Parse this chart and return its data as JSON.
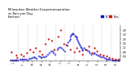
{
  "title": "Milwaukee Weather Evapotranspiration\nvs Rain per Day\n(Inches)",
  "title_fontsize": 2.8,
  "background_color": "#ffffff",
  "legend_et": "ET",
  "legend_rain": "Rain",
  "legend_color_et": "#0000dd",
  "legend_color_rain": "#dd0000",
  "ylim": [
    0,
    0.32
  ],
  "ytick_vals": [
    0.04,
    0.08,
    0.12,
    0.16,
    0.2,
    0.24,
    0.28
  ],
  "ytick_fontsize": 2.2,
  "xtick_fontsize": 2.0,
  "grid_color": "#999999",
  "et_marker_size": 0.9,
  "rain_marker_size": 1.2,
  "et_color": "#0000cc",
  "rain_color": "#cc0000",
  "months": [
    "J",
    "F",
    "M",
    "A",
    "M",
    "J",
    "J",
    "A",
    "S",
    "O",
    "N",
    "D"
  ],
  "et_data": [
    [
      2,
      0.005
    ],
    [
      4,
      0.007
    ],
    [
      6,
      0.008
    ],
    [
      8,
      0.006
    ],
    [
      10,
      0.005
    ],
    [
      12,
      0.004
    ],
    [
      15,
      0.01
    ],
    [
      17,
      0.012
    ],
    [
      19,
      0.01
    ],
    [
      21,
      0.012
    ],
    [
      23,
      0.01
    ],
    [
      25,
      0.008
    ],
    [
      28,
      0.018
    ],
    [
      30,
      0.022
    ],
    [
      32,
      0.03
    ],
    [
      34,
      0.038
    ],
    [
      36,
      0.03
    ],
    [
      38,
      0.022
    ],
    [
      41,
      0.04
    ],
    [
      43,
      0.035
    ],
    [
      45,
      0.03
    ],
    [
      47,
      0.032
    ],
    [
      49,
      0.038
    ],
    [
      51,
      0.042
    ],
    [
      54,
      0.06
    ],
    [
      56,
      0.075
    ],
    [
      58,
      0.09
    ],
    [
      60,
      0.085
    ],
    [
      62,
      0.07
    ],
    [
      64,
      0.055
    ],
    [
      67,
      0.1
    ],
    [
      69,
      0.115
    ],
    [
      71,
      0.125
    ],
    [
      73,
      0.12
    ],
    [
      75,
      0.105
    ],
    [
      77,
      0.09
    ],
    [
      80,
      0.145
    ],
    [
      82,
      0.165
    ],
    [
      84,
      0.185
    ],
    [
      85,
      0.2
    ],
    [
      86,
      0.22
    ],
    [
      87,
      0.235
    ],
    [
      88,
      0.245
    ],
    [
      89,
      0.25
    ],
    [
      90,
      0.245
    ],
    [
      92,
      0.23
    ],
    [
      93,
      0.22
    ],
    [
      94,
      0.21
    ],
    [
      95,
      0.2
    ],
    [
      96,
      0.185
    ],
    [
      97,
      0.17
    ],
    [
      98,
      0.155
    ],
    [
      99,
      0.14
    ],
    [
      100,
      0.125
    ],
    [
      101,
      0.115
    ],
    [
      102,
      0.105
    ],
    [
      103,
      0.095
    ],
    [
      105,
      0.115
    ],
    [
      107,
      0.105
    ],
    [
      109,
      0.095
    ],
    [
      111,
      0.085
    ],
    [
      113,
      0.072
    ],
    [
      115,
      0.06
    ],
    [
      118,
      0.065
    ],
    [
      120,
      0.072
    ],
    [
      122,
      0.06
    ],
    [
      124,
      0.05
    ],
    [
      126,
      0.042
    ],
    [
      128,
      0.035
    ],
    [
      131,
      0.038
    ],
    [
      133,
      0.03
    ],
    [
      135,
      0.022
    ],
    [
      137,
      0.016
    ],
    [
      139,
      0.012
    ],
    [
      141,
      0.01
    ],
    [
      144,
      0.008
    ],
    [
      146,
      0.006
    ],
    [
      148,
      0.005
    ],
    [
      150,
      0.004
    ],
    [
      152,
      0.003
    ],
    [
      154,
      0.002
    ]
  ],
  "rain_data": [
    [
      3,
      0.08
    ],
    [
      9,
      0.05
    ],
    [
      11,
      0.03
    ],
    [
      16,
      0.06
    ],
    [
      20,
      0.04
    ],
    [
      24,
      0.07
    ],
    [
      29,
      0.1
    ],
    [
      33,
      0.08
    ],
    [
      37,
      0.12
    ],
    [
      42,
      0.09
    ],
    [
      46,
      0.06
    ],
    [
      50,
      0.15
    ],
    [
      55,
      0.2
    ],
    [
      59,
      0.18
    ],
    [
      63,
      0.1
    ],
    [
      68,
      0.22
    ],
    [
      72,
      0.28
    ],
    [
      76,
      0.15
    ],
    [
      81,
      0.14
    ],
    [
      86,
      0.1
    ],
    [
      91,
      0.08
    ],
    [
      94,
      0.12
    ],
    [
      98,
      0.09
    ],
    [
      103,
      0.06
    ],
    [
      107,
      0.1
    ],
    [
      111,
      0.13
    ],
    [
      116,
      0.07
    ],
    [
      119,
      0.12
    ],
    [
      123,
      0.09
    ],
    [
      127,
      0.06
    ],
    [
      132,
      0.05
    ],
    [
      136,
      0.04
    ],
    [
      140,
      0.03
    ],
    [
      145,
      0.02
    ],
    [
      149,
      0.015
    ],
    [
      153,
      0.01
    ]
  ],
  "vline_positions": [
    13,
    26,
    39,
    52,
    65,
    78,
    91,
    104,
    117,
    130,
    143
  ],
  "n_days": 156
}
